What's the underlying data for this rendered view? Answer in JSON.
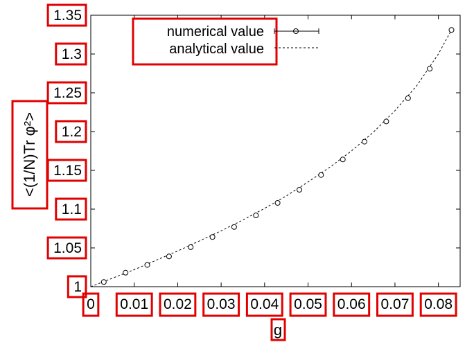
{
  "chart_data": {
    "type": "scatter",
    "xlabel": "g",
    "ylabel": "<(1/N)Tr φ²>",
    "xlim": [
      0,
      0.085
    ],
    "ylim": [
      1,
      1.35
    ],
    "x_ticks": [
      0,
      0.01,
      0.02,
      0.03,
      0.04,
      0.05,
      0.06,
      0.07,
      0.08
    ],
    "x_tick_labels": [
      "0",
      "0.01",
      "0.02",
      "0.03",
      "0.04",
      "0.05",
      "0.06",
      "0.07",
      "0.08"
    ],
    "y_ticks": [
      1,
      1.05,
      1.1,
      1.15,
      1.2,
      1.25,
      1.3,
      1.35
    ],
    "y_tick_labels": [
      "1",
      "1.05",
      "1.1",
      "1.15",
      "1.2",
      "1.25",
      "1.3",
      "1.35"
    ],
    "legend_position": "top-left",
    "series": [
      {
        "name": "numerical value",
        "style": "points-with-errorbars",
        "x": [
          0.003,
          0.008,
          0.013,
          0.018,
          0.023,
          0.028,
          0.033,
          0.038,
          0.043,
          0.048,
          0.053,
          0.058,
          0.063,
          0.068,
          0.073,
          0.078,
          0.083
        ],
        "y": [
          1.006,
          1.018,
          1.028,
          1.039,
          1.051,
          1.064,
          1.077,
          1.092,
          1.108,
          1.125,
          1.144,
          1.164,
          1.187,
          1.213,
          1.243,
          1.281,
          1.331
        ]
      },
      {
        "name": "analytical value",
        "style": "dashed-line",
        "x": [
          0,
          0.005,
          0.01,
          0.015,
          0.02,
          0.025,
          0.03,
          0.035,
          0.04,
          0.045,
          0.05,
          0.055,
          0.06,
          0.065,
          0.07,
          0.075,
          0.08,
          0.083
        ],
        "y": [
          1.0,
          1.011,
          1.022,
          1.034,
          1.046,
          1.059,
          1.072,
          1.086,
          1.101,
          1.117,
          1.135,
          1.154,
          1.175,
          1.199,
          1.227,
          1.259,
          1.3,
          1.331
        ]
      }
    ]
  },
  "colors": {
    "axes": "#000000",
    "annotation_boxes": "#e00000"
  }
}
